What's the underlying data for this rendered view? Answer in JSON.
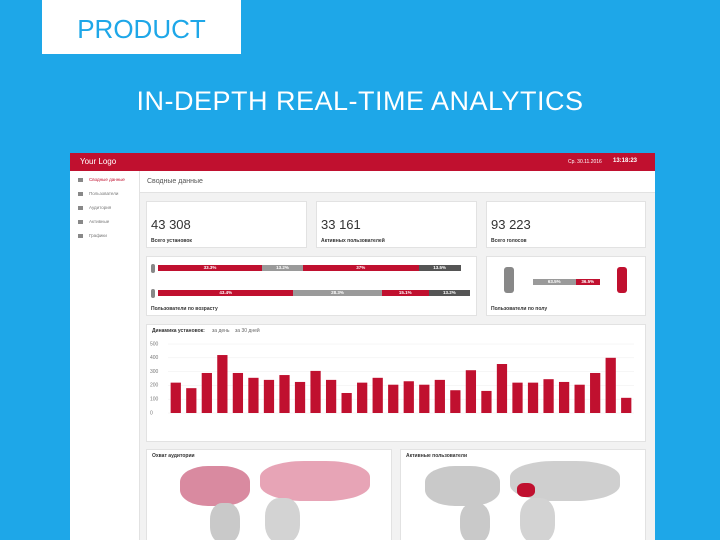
{
  "banner": {
    "tag": "PRODUCT",
    "headline": "IN-DEPTH REAL-TIME ANALYTICS"
  },
  "app": {
    "logo": "Your Logo",
    "date": "Ср. 30.11.2016",
    "time": "13:18:23",
    "sidebar": [
      "Сводные данные",
      "Пользователи",
      "Аудитория",
      "Активные",
      "Графики"
    ],
    "page_title": "Сводные данные"
  },
  "stats": [
    {
      "value": "43 308",
      "label": "Всего установок"
    },
    {
      "value": "33 161",
      "label": "Активных пользователей"
    },
    {
      "value": "93 223",
      "label": "Всего голосов"
    }
  ],
  "age": {
    "title": "Пользователи по возрасту",
    "rows": [
      {
        "values": [
          33.3,
          13.2,
          37,
          13.5
        ],
        "value_labels": [
          "33.3%",
          "13.2%",
          "37%",
          "13.5%"
        ]
      },
      {
        "values": [
          43.4,
          28.3,
          15.1,
          13.2
        ],
        "value_labels": [
          "43.4%",
          "28.3%",
          "15.1%",
          "13.2%"
        ]
      }
    ],
    "colors": [
      "#c0102f",
      "#9a9a9a",
      "#c0102f",
      "#555555"
    ]
  },
  "gender": {
    "title": "Пользователи по полу",
    "values": [
      63.5,
      36.5
    ],
    "value_labels": [
      "63.5%",
      "36.5%"
    ],
    "colors": [
      "#9a9a9a",
      "#c0102f"
    ]
  },
  "chart_data": {
    "type": "bar",
    "title": "Динамика установок:",
    "options": [
      "за день",
      "за 30 дней"
    ],
    "categories": [
      null,
      null,
      null,
      null,
      null,
      null,
      null,
      null,
      null,
      null,
      null,
      null,
      null,
      null,
      null,
      null,
      null,
      null,
      null,
      null,
      null,
      null,
      null,
      null,
      null,
      null,
      null,
      null,
      null,
      null
    ],
    "values": [
      220,
      180,
      290,
      420,
      290,
      255,
      240,
      275,
      225,
      305,
      240,
      145,
      220,
      255,
      205,
      230,
      205,
      240,
      165,
      310,
      160,
      355,
      220,
      220,
      245,
      225,
      205,
      290,
      400,
      110
    ],
    "color": "#c0102f",
    "ylim": [
      0,
      500
    ],
    "yticks": [
      0,
      100,
      200,
      300,
      400,
      500
    ],
    "grid": true
  },
  "maps": [
    {
      "title": "Охват аудитории"
    },
    {
      "title": "Активные пользователи"
    }
  ]
}
